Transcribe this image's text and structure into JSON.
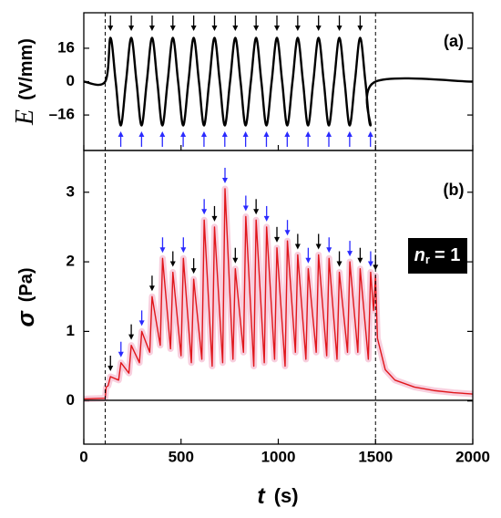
{
  "chart_data": [
    {
      "type": "line",
      "label": "(a)",
      "ylabel": {
        "symbol": "E",
        "unit": "(V/mm)"
      },
      "xlim": [
        0,
        2000
      ],
      "xticks": [
        0,
        500,
        1000,
        1500,
        2000
      ],
      "ylim": [
        -33,
        33
      ],
      "yticks": [
        16,
        0,
        {
          "value": -16,
          "label": "–16"
        }
      ],
      "smooth": true,
      "arrow_colors": [
        "#000000",
        "#2a2aff"
      ],
      "series": [
        {
          "color": "#000000",
          "x": [
            0,
            110,
            137,
            164,
            190,
            217,
            244,
            271,
            297,
            324,
            351,
            378,
            404,
            431,
            458,
            485,
            511,
            538,
            565,
            592,
            618,
            645,
            672,
            699,
            725,
            752,
            779,
            806,
            832,
            859,
            886,
            913,
            939,
            966,
            993,
            1020,
            1046,
            1073,
            1100,
            1127,
            1153,
            1180,
            1207,
            1234,
            1260,
            1287,
            1314,
            1341,
            1367,
            1394,
            1421,
            1448,
            1474,
            1500,
            2000
          ],
          "values": [
            0,
            0,
            21,
            0,
            -21,
            0,
            21,
            0,
            -21,
            0,
            21,
            0,
            -21,
            0,
            21,
            0,
            -21,
            0,
            21,
            0,
            -21,
            0,
            21,
            0,
            -21,
            0,
            21,
            0,
            -21,
            0,
            21,
            0,
            -21,
            0,
            21,
            0,
            -21,
            0,
            21,
            0,
            -21,
            0,
            21,
            0,
            -21,
            0,
            21,
            0,
            -21,
            0,
            21,
            0,
            -21,
            0,
            0
          ]
        }
      ]
    },
    {
      "type": "line",
      "label": "(b)",
      "ylabel": {
        "symbol": "σ",
        "unit": "(Pa)"
      },
      "xlabel": {
        "symbol": "t",
        "unit": "(s)"
      },
      "annotation": {
        "symbol": "n",
        "subscript": "r",
        "text": "= 1"
      },
      "xlim": [
        0,
        2000
      ],
      "xticks": [
        0,
        500,
        1000,
        1500,
        2000
      ],
      "ylim": [
        -0.62,
        3.6
      ],
      "yticks": [
        0,
        1,
        2,
        3
      ],
      "vlines": [
        110,
        1500
      ],
      "smooth": false,
      "arrow_colors": [
        "#000000",
        "#2a2aff"
      ],
      "series": [
        {
          "color": "#e0161b",
          "x": [
            0,
            110,
            115,
            125,
            137,
            179,
            191,
            232,
            244,
            286,
            298,
            339,
            351,
            393,
            405,
            446,
            458,
            500,
            512,
            553,
            565,
            607,
            619,
            660,
            672,
            714,
            726,
            767,
            779,
            821,
            833,
            874,
            886,
            928,
            940,
            981,
            993,
            1035,
            1047,
            1088,
            1100,
            1142,
            1154,
            1195,
            1207,
            1249,
            1261,
            1302,
            1314,
            1356,
            1368,
            1409,
            1421,
            1463,
            1475,
            1490,
            1500,
            1510,
            1550,
            1600,
            1700,
            1800,
            1900,
            2000
          ],
          "values": [
            0.03,
            0.04,
            0.2,
            0.22,
            0.35,
            0.3,
            0.55,
            0.4,
            0.8,
            0.55,
            1.0,
            0.7,
            1.5,
            0.8,
            2.05,
            0.75,
            1.85,
            0.65,
            2.05,
            0.55,
            1.75,
            0.6,
            2.6,
            0.5,
            2.5,
            0.55,
            3.05,
            0.6,
            1.9,
            0.7,
            2.65,
            0.5,
            2.6,
            0.55,
            2.5,
            0.6,
            2.2,
            0.5,
            2.3,
            0.7,
            2.1,
            0.6,
            1.9,
            0.7,
            2.1,
            0.65,
            2.05,
            0.6,
            1.85,
            0.7,
            2.0,
            0.7,
            1.9,
            0.6,
            1.85,
            1.3,
            1.8,
            0.9,
            0.45,
            0.3,
            0.2,
            0.15,
            0.12,
            0.1
          ]
        },
        {
          "color": "#000000",
          "x": [
            0,
            2000
          ],
          "values": [
            0.01,
            0.01
          ]
        }
      ]
    }
  ]
}
